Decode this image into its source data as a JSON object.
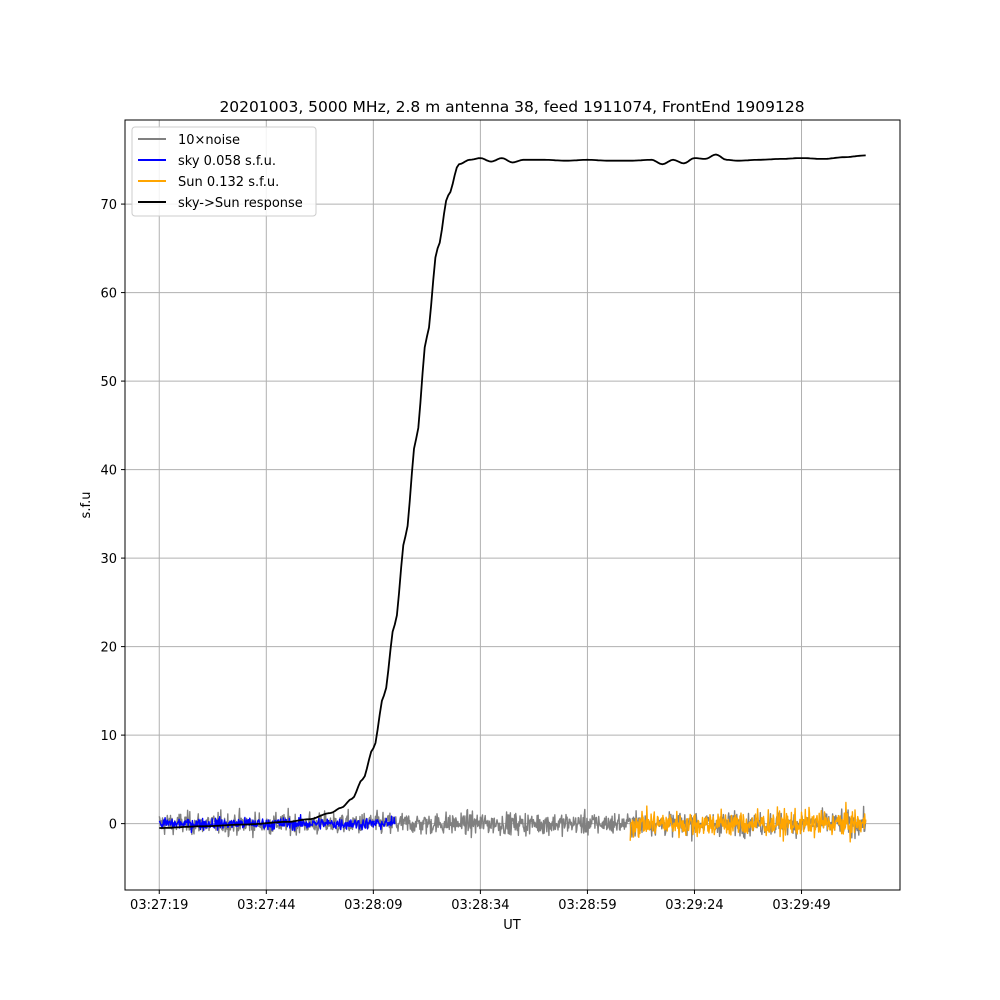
{
  "chart_data": {
    "type": "line",
    "title": "20201003, 5000 MHz, 2.8 m antenna 38, feed 1911074, FrontEnd 1909128",
    "xlabel": "UT",
    "ylabel": "s.f.u",
    "x_unit": "seconds",
    "x_ticks": [
      {
        "t": 0,
        "label": "03:27:19"
      },
      {
        "t": 25,
        "label": "03:27:44"
      },
      {
        "t": 50,
        "label": "03:28:09"
      },
      {
        "t": 75,
        "label": "03:28:34"
      },
      {
        "t": 100,
        "label": "03:28:59"
      },
      {
        "t": 125,
        "label": "03:29:24"
      },
      {
        "t": 150,
        "label": "03:29:49"
      }
    ],
    "xlim": [
      "03:27:11",
      "03:30:12"
    ],
    "ylim": [
      -7.5,
      79.5
    ],
    "y_ticks": [
      0,
      10,
      20,
      30,
      40,
      50,
      60,
      70
    ],
    "grid": true,
    "legend_position": "upper-left",
    "series": [
      {
        "name": "10×noise",
        "color": "#808080",
        "style": "noise",
        "x_range": [
          0,
          165
        ],
        "amplitude": 1.5
      },
      {
        "name": "sky 0.058 s.f.u.",
        "color": "#0000ff",
        "style": "noise",
        "x_range": [
          0,
          55
        ],
        "amplitude": 0.8
      },
      {
        "name": "Sun 0.132 s.f.u.",
        "color": "#ffa500",
        "style": "noise",
        "x_range": [
          110,
          165
        ],
        "amplitude": 1.8
      },
      {
        "name": "sky->Sun response",
        "color": "#000000",
        "style": "line",
        "points": [
          [
            0,
            -0.5
          ],
          [
            10,
            -0.3
          ],
          [
            20,
            -0.1
          ],
          [
            30,
            0.2
          ],
          [
            35,
            0.5
          ],
          [
            40,
            1.2
          ],
          [
            42.5,
            1.8
          ],
          [
            45,
            2.8
          ],
          [
            47.5,
            5.0
          ],
          [
            50,
            8.5
          ],
          [
            52.5,
            14.5
          ],
          [
            55,
            22.5
          ],
          [
            57.5,
            32.5
          ],
          [
            60,
            43.5
          ],
          [
            62.5,
            55.0
          ],
          [
            65,
            65.0
          ],
          [
            67.5,
            71.0
          ],
          [
            70,
            74.5
          ],
          [
            72.5,
            75.0
          ],
          [
            75,
            75.2
          ],
          [
            77.5,
            74.8
          ],
          [
            80,
            75.2
          ],
          [
            82.5,
            74.7
          ],
          [
            85,
            75.0
          ],
          [
            90,
            75.0
          ],
          [
            95,
            74.9
          ],
          [
            100,
            75.0
          ],
          [
            105,
            74.9
          ],
          [
            110,
            74.9
          ],
          [
            115,
            75.0
          ],
          [
            117.5,
            74.5
          ],
          [
            120,
            75.0
          ],
          [
            122.5,
            74.6
          ],
          [
            125,
            75.2
          ],
          [
            127.5,
            75.1
          ],
          [
            130,
            75.6
          ],
          [
            132.5,
            75.0
          ],
          [
            135,
            74.9
          ],
          [
            140,
            75.0
          ],
          [
            145,
            75.1
          ],
          [
            150,
            75.2
          ],
          [
            155,
            75.1
          ],
          [
            160,
            75.3
          ],
          [
            165,
            75.5
          ]
        ]
      }
    ]
  }
}
